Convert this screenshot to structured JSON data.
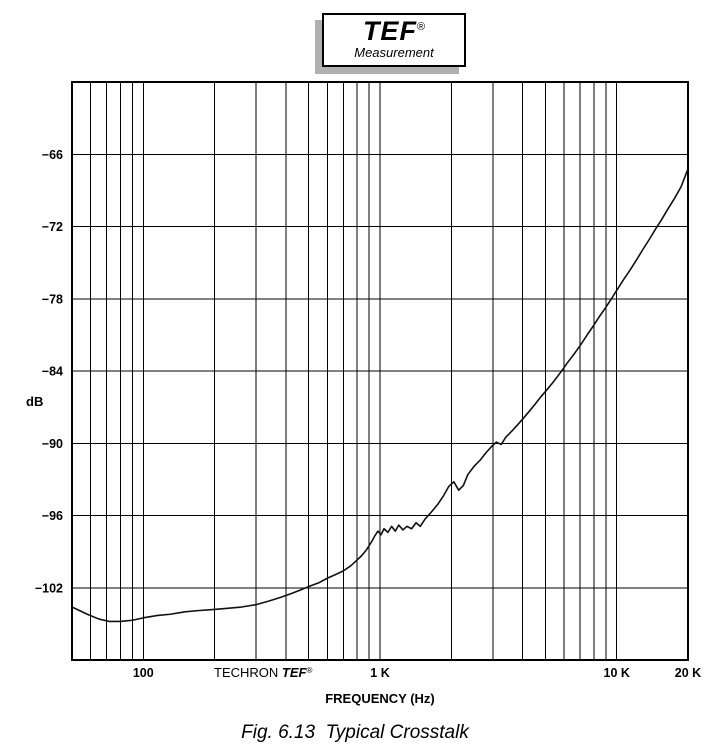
{
  "logo": {
    "name": "TEF",
    "reg": "®",
    "subtitle": "Measurement"
  },
  "chart": {
    "y_axis_label": "dB",
    "x_axis_label": "FREQUENCY (Hz)",
    "credit_prefix": "TECHRON ",
    "credit_brand": "TEF",
    "credit_reg": "®"
  },
  "caption": "Fig. 6.13  Typical Crosstalk",
  "chart_data": {
    "type": "line",
    "title": "TEF Measurement — Typical Crosstalk",
    "xlabel": "FREQUENCY (Hz)",
    "ylabel": "dB",
    "x_scale": "log",
    "grid": true,
    "legend": "none",
    "xlim": [
      50,
      20000
    ],
    "ylim": [
      -108,
      -60
    ],
    "y_grid_step": 6,
    "xticks": [
      {
        "value": 100,
        "label": "100"
      },
      {
        "value": 1000,
        "label": "1 K"
      },
      {
        "value": 10000,
        "label": "10 K"
      },
      {
        "value": 20000,
        "label": "20 K"
      }
    ],
    "yticks": [
      {
        "value": -66,
        "label": "−66"
      },
      {
        "value": -72,
        "label": "−72"
      },
      {
        "value": -78,
        "label": "−78"
      },
      {
        "value": -84,
        "label": "−84"
      },
      {
        "value": -90,
        "label": "−90"
      },
      {
        "value": -96,
        "label": "−96"
      },
      {
        "value": -102,
        "label": "−102"
      }
    ],
    "series": [
      {
        "name": "crosstalk",
        "points": [
          [
            50,
            -103.6
          ],
          [
            58,
            -104.2
          ],
          [
            65,
            -104.6
          ],
          [
            72,
            -104.8
          ],
          [
            80,
            -104.8
          ],
          [
            90,
            -104.7
          ],
          [
            100,
            -104.5
          ],
          [
            115,
            -104.3
          ],
          [
            130,
            -104.2
          ],
          [
            150,
            -104.0
          ],
          [
            170,
            -103.9
          ],
          [
            200,
            -103.8
          ],
          [
            230,
            -103.7
          ],
          [
            260,
            -103.6
          ],
          [
            300,
            -103.4
          ],
          [
            340,
            -103.1
          ],
          [
            380,
            -102.8
          ],
          [
            420,
            -102.5
          ],
          [
            460,
            -102.2
          ],
          [
            500,
            -101.9
          ],
          [
            550,
            -101.6
          ],
          [
            600,
            -101.2
          ],
          [
            650,
            -100.9
          ],
          [
            700,
            -100.6
          ],
          [
            750,
            -100.2
          ],
          [
            800,
            -99.7
          ],
          [
            840,
            -99.3
          ],
          [
            880,
            -98.8
          ],
          [
            920,
            -98.2
          ],
          [
            950,
            -97.7
          ],
          [
            980,
            -97.3
          ],
          [
            1010,
            -97.6
          ],
          [
            1040,
            -97.1
          ],
          [
            1080,
            -97.4
          ],
          [
            1120,
            -96.9
          ],
          [
            1160,
            -97.3
          ],
          [
            1200,
            -96.8
          ],
          [
            1250,
            -97.2
          ],
          [
            1300,
            -96.9
          ],
          [
            1360,
            -97.1
          ],
          [
            1420,
            -96.6
          ],
          [
            1480,
            -96.9
          ],
          [
            1550,
            -96.3
          ],
          [
            1650,
            -95.7
          ],
          [
            1750,
            -95.1
          ],
          [
            1850,
            -94.4
          ],
          [
            1950,
            -93.6
          ],
          [
            2050,
            -93.2
          ],
          [
            2150,
            -93.9
          ],
          [
            2250,
            -93.5
          ],
          [
            2350,
            -92.6
          ],
          [
            2500,
            -91.9
          ],
          [
            2650,
            -91.4
          ],
          [
            2800,
            -90.8
          ],
          [
            2950,
            -90.3
          ],
          [
            3100,
            -89.9
          ],
          [
            3250,
            -90.1
          ],
          [
            3400,
            -89.5
          ],
          [
            3600,
            -89.0
          ],
          [
            3800,
            -88.5
          ],
          [
            4000,
            -88.0
          ],
          [
            4250,
            -87.4
          ],
          [
            4500,
            -86.8
          ],
          [
            4800,
            -86.1
          ],
          [
            5100,
            -85.5
          ],
          [
            5400,
            -84.9
          ],
          [
            5800,
            -84.1
          ],
          [
            6200,
            -83.3
          ],
          [
            6600,
            -82.6
          ],
          [
            7000,
            -81.9
          ],
          [
            7500,
            -81.0
          ],
          [
            8000,
            -80.2
          ],
          [
            8500,
            -79.4
          ],
          [
            9000,
            -78.7
          ],
          [
            9500,
            -78.0
          ],
          [
            10000,
            -77.3
          ],
          [
            10700,
            -76.4
          ],
          [
            11400,
            -75.6
          ],
          [
            12100,
            -74.8
          ],
          [
            12900,
            -73.9
          ],
          [
            13700,
            -73.1
          ],
          [
            14600,
            -72.2
          ],
          [
            15500,
            -71.4
          ],
          [
            16500,
            -70.5
          ],
          [
            17500,
            -69.7
          ],
          [
            18700,
            -68.7
          ],
          [
            20000,
            -67.2
          ]
        ]
      }
    ]
  }
}
